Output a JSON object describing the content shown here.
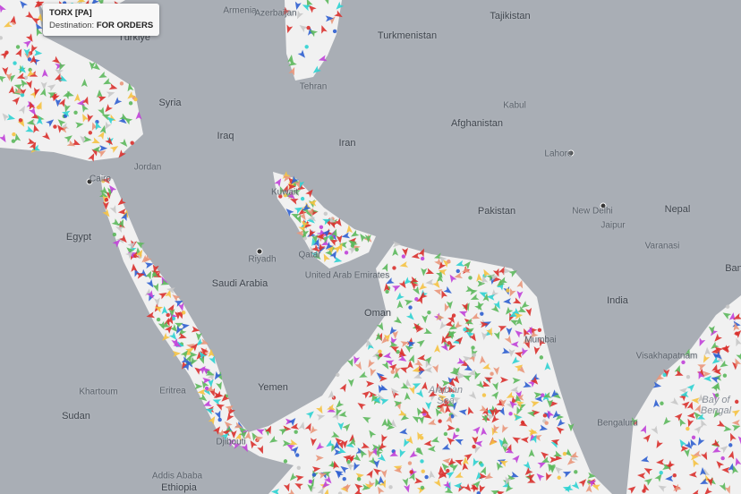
{
  "tooltip": {
    "vessel_name": "TORX [PA]",
    "destination_label": "Destination:",
    "destination_value": "FOR ORDERS"
  },
  "colors": {
    "land": "#a9aeb5",
    "sea": "#f1f1f1",
    "cargo": "#5cb85c",
    "tanker": "#d9302c",
    "passenger": "#2f5fd0",
    "tug": "#2ed1d1",
    "fishing": "#e9967a",
    "pleasure": "#c040d8",
    "highspeed": "#f5c242",
    "unknown": "#c8c8c8"
  },
  "labels": {
    "armenia": "Armenia",
    "azerbaijan": "Azerbaijan",
    "turkmenistan": "Turkmenistan",
    "tajikistan": "Tajikistan",
    "turkiye": "Türkiye",
    "syria": "Syria",
    "iraq": "Iraq",
    "iran": "Iran",
    "afghanistan": "Afghanistan",
    "pakistan": "Pakistan",
    "nepal": "Nepal",
    "new_delhi": "New Delhi",
    "lahore": "Lahore",
    "egypt": "Egypt",
    "saudi_arabia": "Saudi Arabia",
    "riyadh": "Riyadh",
    "oman": "Oman",
    "uae": "United Arab Emirates",
    "yemen": "Yemen",
    "eritrea": "Eritrea",
    "sudan": "Sudan",
    "ethiopia": "Ethiopia",
    "india": "India",
    "bay_of_bengal": "Bay of Bengal",
    "arabian_sea": "Arabian Sea",
    "jordan": "Jordan",
    "kuwait": "Kuwait",
    "qatar": "Qatar",
    "djibouti": "Djibouti",
    "bangladesh": "Ban",
    "bengaluru": "Bengaluru",
    "mumbai": "Mumbai",
    "cairo": "Cairo",
    "tehran": "Tehran",
    "kabul": "Kabul",
    "khartoum": "Khartoum",
    "addis_ababa": "Addis Ababa",
    "varanasi": "Varanasi",
    "jaipur": "Jaipur",
    "visakhapatnam": "Visakhapatnam"
  }
}
